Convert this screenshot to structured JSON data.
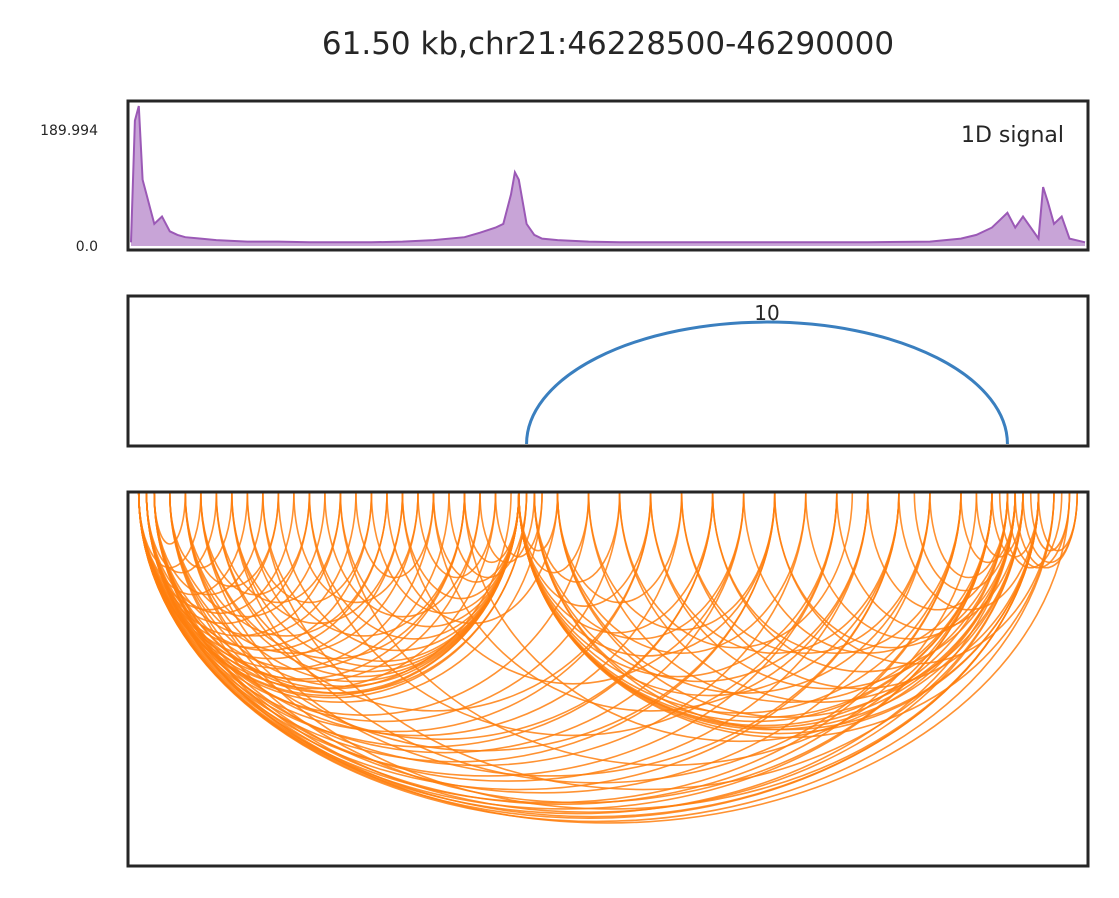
{
  "title": "61.50 kb,chr21:46228500-46290000",
  "chart_data": [
    {
      "type": "area",
      "panel": "signal",
      "title": "1D signal",
      "color": "#9b59b6",
      "ylim": [
        0.0,
        189.994
      ],
      "ytick_labels": [
        "189.994",
        "0.0"
      ],
      "xlim": [
        46228500,
        46290000
      ],
      "x": [
        46228500,
        46228750,
        46229000,
        46229250,
        46229500,
        46229750,
        46230000,
        46230500,
        46231000,
        46231500,
        46232000,
        46233000,
        46234000,
        46236000,
        46238000,
        46240000,
        46242000,
        46244000,
        46246000,
        46248000,
        46250000,
        46251000,
        46252000,
        46252500,
        46253000,
        46253250,
        46253500,
        46253750,
        46254000,
        46254500,
        46255000,
        46256000,
        46258000,
        46260000,
        46264000,
        46268000,
        46272000,
        46276000,
        46280000,
        46282000,
        46283000,
        46284000,
        46284500,
        46285000,
        46285500,
        46286000,
        46287000,
        46287300,
        46287600,
        46288000,
        46288500,
        46289000,
        46290000
      ],
      "values": [
        5,
        170,
        190,
        90,
        70,
        50,
        30,
        40,
        20,
        15,
        12,
        10,
        8,
        6,
        6,
        5,
        5,
        5,
        6,
        8,
        12,
        18,
        25,
        30,
        70,
        100,
        90,
        60,
        30,
        15,
        10,
        8,
        6,
        5,
        5,
        5,
        5,
        5,
        6,
        10,
        15,
        25,
        35,
        45,
        25,
        40,
        10,
        80,
        60,
        30,
        40,
        10,
        5
      ]
    },
    {
      "type": "arc",
      "panel": "loops",
      "color": "#3a7fbf",
      "xlim": [
        46228500,
        46290000
      ],
      "arcs": [
        {
          "start": 46254000,
          "end": 46285000,
          "label": "10"
        }
      ]
    },
    {
      "type": "arc",
      "panel": "interactions",
      "color": "#ff7f0e",
      "xlim": [
        46228500,
        46290000
      ],
      "arcs": [
        {
          "start": 46229000,
          "end": 46233000
        },
        {
          "start": 46229000,
          "end": 46236000
        },
        {
          "start": 46229000,
          "end": 46238000
        },
        {
          "start": 46229000,
          "end": 46240000
        },
        {
          "start": 46229000,
          "end": 46242000
        },
        {
          "start": 46229000,
          "end": 46244000
        },
        {
          "start": 46229000,
          "end": 46246000
        },
        {
          "start": 46229000,
          "end": 46248000
        },
        {
          "start": 46229000,
          "end": 46250000
        },
        {
          "start": 46229000,
          "end": 46252000
        },
        {
          "start": 46229000,
          "end": 46253500
        },
        {
          "start": 46229000,
          "end": 46254000
        },
        {
          "start": 46229000,
          "end": 46255000
        },
        {
          "start": 46229000,
          "end": 46258000
        },
        {
          "start": 46229000,
          "end": 46262000
        },
        {
          "start": 46229000,
          "end": 46266000
        },
        {
          "start": 46229000,
          "end": 46270000
        },
        {
          "start": 46229000,
          "end": 46274000
        },
        {
          "start": 46229000,
          "end": 46278000
        },
        {
          "start": 46229000,
          "end": 46282000
        },
        {
          "start": 46229000,
          "end": 46284000
        },
        {
          "start": 46229000,
          "end": 46285500
        },
        {
          "start": 46229000,
          "end": 46287000
        },
        {
          "start": 46229000,
          "end": 46288000
        },
        {
          "start": 46229500,
          "end": 46234000
        },
        {
          "start": 46229500,
          "end": 46239000
        },
        {
          "start": 46229500,
          "end": 46245000
        },
        {
          "start": 46229500,
          "end": 46251000
        },
        {
          "start": 46229500,
          "end": 46253500
        },
        {
          "start": 46229500,
          "end": 46260000
        },
        {
          "start": 46229500,
          "end": 46268000
        },
        {
          "start": 46229500,
          "end": 46276000
        },
        {
          "start": 46229500,
          "end": 46283000
        },
        {
          "start": 46229500,
          "end": 46287000
        },
        {
          "start": 46229500,
          "end": 46289000
        },
        {
          "start": 46230000,
          "end": 46232000
        },
        {
          "start": 46230000,
          "end": 46237000
        },
        {
          "start": 46230000,
          "end": 46243000
        },
        {
          "start": 46230000,
          "end": 46249000
        },
        {
          "start": 46230000,
          "end": 46253000
        },
        {
          "start": 46230000,
          "end": 46254000
        },
        {
          "start": 46230000,
          "end": 46264000
        },
        {
          "start": 46230000,
          "end": 46272000
        },
        {
          "start": 46230000,
          "end": 46280000
        },
        {
          "start": 46230000,
          "end": 46286000
        },
        {
          "start": 46231000,
          "end": 46235000
        },
        {
          "start": 46231000,
          "end": 46241000
        },
        {
          "start": 46231000,
          "end": 46247000
        },
        {
          "start": 46231000,
          "end": 46253500
        },
        {
          "start": 46231000,
          "end": 46266000
        },
        {
          "start": 46231000,
          "end": 46284000
        },
        {
          "start": 46232000,
          "end": 46238000
        },
        {
          "start": 46232000,
          "end": 46245000
        },
        {
          "start": 46232000,
          "end": 46253500
        },
        {
          "start": 46232000,
          "end": 46270000
        },
        {
          "start": 46232000,
          "end": 46287000
        },
        {
          "start": 46233000,
          "end": 46240000
        },
        {
          "start": 46233000,
          "end": 46250000
        },
        {
          "start": 46233000,
          "end": 46253500
        },
        {
          "start": 46233000,
          "end": 46278000
        },
        {
          "start": 46234000,
          "end": 46242000
        },
        {
          "start": 46234000,
          "end": 46253500
        },
        {
          "start": 46234000,
          "end": 46262000
        },
        {
          "start": 46235000,
          "end": 46246000
        },
        {
          "start": 46235000,
          "end": 46253500
        },
        {
          "start": 46235000,
          "end": 46282000
        },
        {
          "start": 46236000,
          "end": 46244000
        },
        {
          "start": 46236000,
          "end": 46253500
        },
        {
          "start": 46237000,
          "end": 46250000
        },
        {
          "start": 46237000,
          "end": 46286000
        },
        {
          "start": 46238000,
          "end": 46253500
        },
        {
          "start": 46239000,
          "end": 46247000
        },
        {
          "start": 46240000,
          "end": 46253500
        },
        {
          "start": 46240000,
          "end": 46274000
        },
        {
          "start": 46241000,
          "end": 46251000
        },
        {
          "start": 46242000,
          "end": 46253500
        },
        {
          "start": 46242000,
          "end": 46284000
        },
        {
          "start": 46243000,
          "end": 46248000
        },
        {
          "start": 46244000,
          "end": 46253500
        },
        {
          "start": 46245000,
          "end": 46256000
        },
        {
          "start": 46246000,
          "end": 46253500
        },
        {
          "start": 46246000,
          "end": 46268000
        },
        {
          "start": 46247000,
          "end": 46252000
        },
        {
          "start": 46248000,
          "end": 46253500
        },
        {
          "start": 46248000,
          "end": 46276000
        },
        {
          "start": 46249000,
          "end": 46254000
        },
        {
          "start": 46250000,
          "end": 46253500
        },
        {
          "start": 46250000,
          "end": 46285500
        },
        {
          "start": 46251000,
          "end": 46254500
        },
        {
          "start": 46252000,
          "end": 46255000
        },
        {
          "start": 46253500,
          "end": 46256000
        },
        {
          "start": 46253500,
          "end": 46258000
        },
        {
          "start": 46253500,
          "end": 46262000
        },
        {
          "start": 46253500,
          "end": 46266000
        },
        {
          "start": 46253500,
          "end": 46270000
        },
        {
          "start": 46253500,
          "end": 46274000
        },
        {
          "start": 46253500,
          "end": 46278000
        },
        {
          "start": 46253500,
          "end": 46282000
        },
        {
          "start": 46253500,
          "end": 46284000
        },
        {
          "start": 46253500,
          "end": 46285000
        },
        {
          "start": 46253500,
          "end": 46285500
        },
        {
          "start": 46253500,
          "end": 46286000
        },
        {
          "start": 46253500,
          "end": 46287000
        },
        {
          "start": 46253500,
          "end": 46288000
        },
        {
          "start": 46254500,
          "end": 46260000
        },
        {
          "start": 46254500,
          "end": 46268000
        },
        {
          "start": 46254500,
          "end": 46276000
        },
        {
          "start": 46254500,
          "end": 46284000
        },
        {
          "start": 46254500,
          "end": 46287000
        },
        {
          "start": 46256000,
          "end": 46264000
        },
        {
          "start": 46256000,
          "end": 46272000
        },
        {
          "start": 46256000,
          "end": 46280000
        },
        {
          "start": 46256000,
          "end": 46285500
        },
        {
          "start": 46258000,
          "end": 46270000
        },
        {
          "start": 46258000,
          "end": 46284000
        },
        {
          "start": 46260000,
          "end": 46275000
        },
        {
          "start": 46260000,
          "end": 46286000
        },
        {
          "start": 46262000,
          "end": 46278000
        },
        {
          "start": 46262000,
          "end": 46285000
        },
        {
          "start": 46264000,
          "end": 46280000
        },
        {
          "start": 46264000,
          "end": 46287000
        },
        {
          "start": 46266000,
          "end": 46282000
        },
        {
          "start": 46266000,
          "end": 46285500
        },
        {
          "start": 46268000,
          "end": 46284000
        },
        {
          "start": 46270000,
          "end": 46285000
        },
        {
          "start": 46270000,
          "end": 46288000
        },
        {
          "start": 46272000,
          "end": 46285500
        },
        {
          "start": 46274000,
          "end": 46286000
        },
        {
          "start": 46276000,
          "end": 46285000
        },
        {
          "start": 46278000,
          "end": 46287000
        },
        {
          "start": 46279000,
          "end": 46285500
        },
        {
          "start": 46280000,
          "end": 46285000
        },
        {
          "start": 46282000,
          "end": 46285500
        },
        {
          "start": 46283000,
          "end": 46286000
        },
        {
          "start": 46284000,
          "end": 46287000
        },
        {
          "start": 46284500,
          "end": 46288500
        },
        {
          "start": 46285000,
          "end": 46289000
        },
        {
          "start": 46285500,
          "end": 46289500
        },
        {
          "start": 46286000,
          "end": 46289500
        },
        {
          "start": 46286500,
          "end": 46289000
        },
        {
          "start": 46287000,
          "end": 46289500
        }
      ]
    }
  ]
}
